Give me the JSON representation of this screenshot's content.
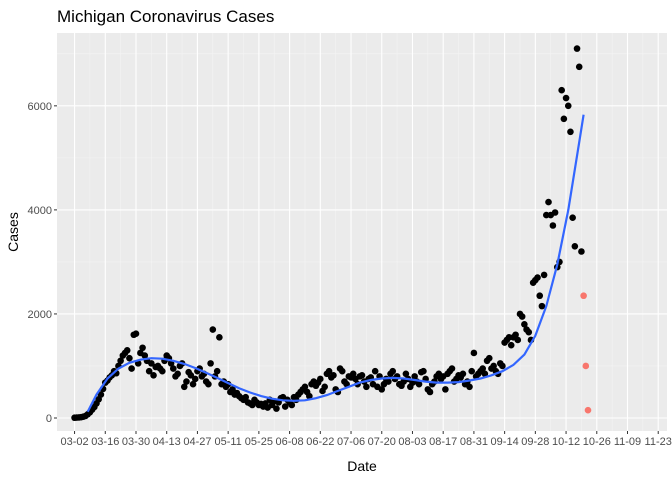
{
  "chart_data": {
    "type": "scatter",
    "title": "Michigan Coronavirus Cases",
    "xlabel": "Date",
    "ylabel": "Cases",
    "x_tick_labels": [
      "03-02",
      "03-16",
      "03-30",
      "04-13",
      "04-27",
      "05-11",
      "05-25",
      "06-08",
      "06-22",
      "07-06",
      "07-20",
      "08-03",
      "08-17",
      "08-31",
      "09-14",
      "09-28",
      "10-12",
      "10-26",
      "11-09",
      "11-23"
    ],
    "x_range_days": [
      -8,
      270
    ],
    "y_ticks": [
      0,
      2000,
      4000,
      6000
    ],
    "ylim": [
      -250,
      7400
    ],
    "grid": true,
    "legend": "none",
    "colors": {
      "panel": "#ebebeb",
      "grid_major": "#ffffff",
      "grid_minor": "#f4f4f4",
      "points": "#000000",
      "highlight_points": "#f8766d",
      "smooth_line": "#3366ff"
    },
    "series": [
      {
        "role": "observed",
        "points": [
          [
            0,
            5
          ],
          [
            1,
            8
          ],
          [
            2,
            10
          ],
          [
            3,
            15
          ],
          [
            4,
            25
          ],
          [
            5,
            40
          ],
          [
            6,
            70
          ],
          [
            7,
            110
          ],
          [
            8,
            160
          ],
          [
            9,
            210
          ],
          [
            10,
            280
          ],
          [
            11,
            360
          ],
          [
            12,
            450
          ],
          [
            13,
            560
          ],
          [
            14,
            680
          ],
          [
            15,
            720
          ],
          [
            16,
            780
          ],
          [
            17,
            820
          ],
          [
            18,
            900
          ],
          [
            19,
            860
          ],
          [
            20,
            1000
          ],
          [
            21,
            1100
          ],
          [
            22,
            1200
          ],
          [
            23,
            1250
          ],
          [
            24,
            1300
          ],
          [
            25,
            1150
          ],
          [
            26,
            950
          ],
          [
            27,
            1600
          ],
          [
            28,
            1620
          ],
          [
            29,
            1050
          ],
          [
            30,
            1250
          ],
          [
            31,
            1350
          ],
          [
            32,
            1200
          ],
          [
            33,
            1100
          ],
          [
            34,
            900
          ],
          [
            35,
            1050
          ],
          [
            36,
            820
          ],
          [
            37,
            980
          ],
          [
            38,
            1000
          ],
          [
            39,
            950
          ],
          [
            40,
            900
          ],
          [
            41,
            1100
          ],
          [
            42,
            1200
          ],
          [
            43,
            1150
          ],
          [
            44,
            1050
          ],
          [
            45,
            950
          ],
          [
            46,
            800
          ],
          [
            47,
            850
          ],
          [
            48,
            1000
          ],
          [
            49,
            1050
          ],
          [
            50,
            600
          ],
          [
            51,
            700
          ],
          [
            52,
            880
          ],
          [
            53,
            820
          ],
          [
            54,
            650
          ],
          [
            55,
            750
          ],
          [
            56,
            900
          ],
          [
            57,
            950
          ],
          [
            58,
            800
          ],
          [
            59,
            850
          ],
          [
            60,
            700
          ],
          [
            61,
            650
          ],
          [
            62,
            1050
          ],
          [
            63,
            1700
          ],
          [
            64,
            800
          ],
          [
            65,
            900
          ],
          [
            66,
            1550
          ],
          [
            67,
            650
          ],
          [
            68,
            700
          ],
          [
            69,
            600
          ],
          [
            70,
            650
          ],
          [
            71,
            500
          ],
          [
            72,
            550
          ],
          [
            73,
            450
          ],
          [
            74,
            480
          ],
          [
            75,
            420
          ],
          [
            76,
            380
          ],
          [
            77,
            350
          ],
          [
            78,
            400
          ],
          [
            79,
            300
          ],
          [
            80,
            280
          ],
          [
            81,
            250
          ],
          [
            82,
            350
          ],
          [
            83,
            300
          ],
          [
            84,
            250
          ],
          [
            85,
            270
          ],
          [
            86,
            220
          ],
          [
            87,
            280
          ],
          [
            88,
            200
          ],
          [
            89,
            350
          ],
          [
            90,
            250
          ],
          [
            91,
            320
          ],
          [
            92,
            180
          ],
          [
            93,
            300
          ],
          [
            94,
            380
          ],
          [
            95,
            400
          ],
          [
            96,
            220
          ],
          [
            97,
            350
          ],
          [
            98,
            300
          ],
          [
            99,
            250
          ],
          [
            100,
            400
          ],
          [
            101,
            350
          ],
          [
            102,
            450
          ],
          [
            103,
            500
          ],
          [
            104,
            550
          ],
          [
            105,
            600
          ],
          [
            106,
            500
          ],
          [
            107,
            420
          ],
          [
            108,
            650
          ],
          [
            109,
            700
          ],
          [
            110,
            620
          ],
          [
            111,
            680
          ],
          [
            112,
            750
          ],
          [
            113,
            520
          ],
          [
            114,
            600
          ],
          [
            115,
            850
          ],
          [
            116,
            900
          ],
          [
            117,
            780
          ],
          [
            118,
            820
          ],
          [
            119,
            550
          ],
          [
            120,
            500
          ],
          [
            121,
            950
          ],
          [
            122,
            900
          ],
          [
            123,
            700
          ],
          [
            124,
            650
          ],
          [
            125,
            800
          ],
          [
            126,
            780
          ],
          [
            127,
            850
          ],
          [
            128,
            750
          ],
          [
            129,
            650
          ],
          [
            130,
            800
          ],
          [
            131,
            820
          ],
          [
            132,
            700
          ],
          [
            133,
            600
          ],
          [
            134,
            750
          ],
          [
            135,
            780
          ],
          [
            136,
            650
          ],
          [
            137,
            900
          ],
          [
            138,
            600
          ],
          [
            139,
            800
          ],
          [
            140,
            550
          ],
          [
            141,
            650
          ],
          [
            142,
            750
          ],
          [
            143,
            700
          ],
          [
            144,
            850
          ],
          [
            145,
            900
          ],
          [
            146,
            750
          ],
          [
            147,
            800
          ],
          [
            148,
            650
          ],
          [
            149,
            620
          ],
          [
            150,
            700
          ],
          [
            151,
            850
          ],
          [
            152,
            750
          ],
          [
            153,
            600
          ],
          [
            154,
            680
          ],
          [
            155,
            800
          ],
          [
            156,
            700
          ],
          [
            157,
            650
          ],
          [
            158,
            880
          ],
          [
            159,
            900
          ],
          [
            160,
            750
          ],
          [
            161,
            550
          ],
          [
            162,
            500
          ],
          [
            163,
            650
          ],
          [
            164,
            700
          ],
          [
            165,
            800
          ],
          [
            166,
            850
          ],
          [
            167,
            750
          ],
          [
            168,
            800
          ],
          [
            169,
            550
          ],
          [
            170,
            850
          ],
          [
            171,
            900
          ],
          [
            172,
            950
          ],
          [
            173,
            700
          ],
          [
            174,
            750
          ],
          [
            175,
            820
          ],
          [
            176,
            780
          ],
          [
            177,
            850
          ],
          [
            178,
            650
          ],
          [
            179,
            700
          ],
          [
            180,
            600
          ],
          [
            181,
            900
          ],
          [
            182,
            1250
          ],
          [
            183,
            800
          ],
          [
            184,
            850
          ],
          [
            185,
            900
          ],
          [
            186,
            950
          ],
          [
            187,
            850
          ],
          [
            188,
            1100
          ],
          [
            189,
            1150
          ],
          [
            190,
            950
          ],
          [
            191,
            1000
          ],
          [
            192,
            900
          ],
          [
            193,
            850
          ],
          [
            194,
            1050
          ],
          [
            195,
            1000
          ],
          [
            196,
            1450
          ],
          [
            197,
            1500
          ],
          [
            198,
            1550
          ],
          [
            199,
            1400
          ],
          [
            200,
            1550
          ],
          [
            201,
            1600
          ],
          [
            202,
            1500
          ],
          [
            203,
            2000
          ],
          [
            204,
            1950
          ],
          [
            205,
            1800
          ],
          [
            206,
            1700
          ],
          [
            207,
            1650
          ],
          [
            208,
            1500
          ],
          [
            209,
            2600
          ],
          [
            210,
            2650
          ],
          [
            211,
            2700
          ],
          [
            212,
            2350
          ],
          [
            213,
            2150
          ],
          [
            214,
            2750
          ],
          [
            215,
            3900
          ],
          [
            216,
            4150
          ],
          [
            217,
            3900
          ],
          [
            218,
            3700
          ],
          [
            219,
            3950
          ],
          [
            220,
            2900
          ],
          [
            221,
            3000
          ],
          [
            222,
            6300
          ],
          [
            223,
            5750
          ],
          [
            224,
            6150
          ],
          [
            225,
            6000
          ],
          [
            226,
            5500
          ],
          [
            227,
            3850
          ],
          [
            228,
            3300
          ],
          [
            229,
            7100
          ],
          [
            230,
            6750
          ],
          [
            231,
            3200
          ]
        ]
      },
      {
        "role": "highlighted",
        "points": [
          [
            232,
            2350
          ],
          [
            233,
            1000
          ],
          [
            234,
            150
          ]
        ]
      },
      {
        "role": "smooth",
        "points": [
          [
            6,
            120
          ],
          [
            10,
            450
          ],
          [
            15,
            760
          ],
          [
            20,
            950
          ],
          [
            25,
            1060
          ],
          [
            30,
            1120
          ],
          [
            35,
            1150
          ],
          [
            40,
            1140
          ],
          [
            45,
            1100
          ],
          [
            50,
            1040
          ],
          [
            55,
            960
          ],
          [
            60,
            870
          ],
          [
            65,
            770
          ],
          [
            70,
            670
          ],
          [
            75,
            570
          ],
          [
            80,
            490
          ],
          [
            85,
            420
          ],
          [
            90,
            370
          ],
          [
            95,
            340
          ],
          [
            100,
            330
          ],
          [
            105,
            340
          ],
          [
            110,
            380
          ],
          [
            115,
            440
          ],
          [
            120,
            520
          ],
          [
            125,
            600
          ],
          [
            130,
            680
          ],
          [
            135,
            730
          ],
          [
            140,
            760
          ],
          [
            145,
            770
          ],
          [
            150,
            760
          ],
          [
            155,
            730
          ],
          [
            160,
            700
          ],
          [
            165,
            680
          ],
          [
            170,
            680
          ],
          [
            175,
            690
          ],
          [
            180,
            720
          ],
          [
            185,
            760
          ],
          [
            190,
            820
          ],
          [
            195,
            900
          ],
          [
            200,
            1020
          ],
          [
            205,
            1220
          ],
          [
            210,
            1580
          ],
          [
            215,
            2150
          ],
          [
            220,
            2950
          ],
          [
            225,
            4000
          ],
          [
            230,
            5300
          ],
          [
            232,
            5830
          ]
        ]
      }
    ]
  }
}
